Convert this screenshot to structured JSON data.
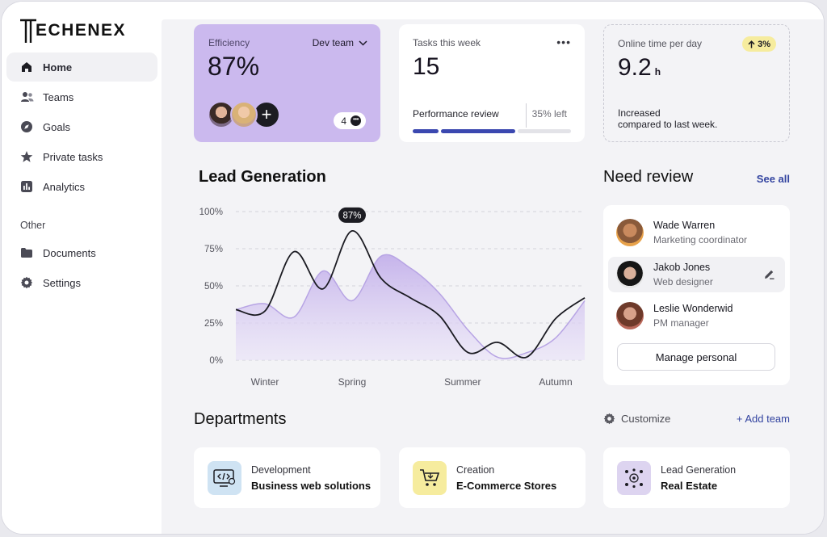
{
  "brand": {
    "name": "ECHENEX"
  },
  "sidebar": {
    "items": [
      {
        "label": "Home",
        "icon": "home-icon"
      },
      {
        "label": "Teams",
        "icon": "teams-icon"
      },
      {
        "label": "Goals",
        "icon": "compass-icon"
      },
      {
        "label": "Private tasks",
        "icon": "star-icon"
      },
      {
        "label": "Analytics",
        "icon": "analytics-icon"
      }
    ],
    "other_heading": "Other",
    "other_items": [
      {
        "label": "Documents",
        "icon": "folder-icon"
      },
      {
        "label": "Settings",
        "icon": "gear-icon"
      }
    ]
  },
  "efficiency": {
    "label": "Efficiency",
    "value": "87%",
    "team": "Dev team",
    "count": "4"
  },
  "tasks": {
    "label": "Tasks this week",
    "value": "15",
    "progress_label": "Performance review",
    "left": "35% left",
    "progress": 0.65
  },
  "online": {
    "label": "Online time per day",
    "badge": "3%",
    "value": "9.2",
    "unit": "h",
    "note_line1": "Increased",
    "note_line2": "compared to last week."
  },
  "lead": {
    "title": "Lead Generation"
  },
  "chart_data": {
    "type": "line",
    "title": "Lead Generation",
    "categories": [
      "Winter",
      "Spring",
      "Summer",
      "Autumn"
    ],
    "ylabels": [
      "100%",
      "75%",
      "50%",
      "25%",
      "0%"
    ],
    "ylim": [
      0,
      100
    ],
    "x": [
      0,
      0.5,
      1,
      1.5,
      2,
      2.5,
      3,
      3.5,
      4,
      4.5,
      5,
      5.5,
      6
    ],
    "series": [
      {
        "name": "Line",
        "style": "line",
        "color": "#1b1b22",
        "values": [
          34,
          33,
          73,
          48,
          87,
          55,
          42,
          30,
          5,
          12,
          2,
          28,
          42
        ]
      },
      {
        "name": "Area",
        "style": "area",
        "color": "#c7b6ea",
        "values": [
          34,
          38,
          29,
          60,
          40,
          70,
          62,
          45,
          20,
          2,
          5,
          15,
          40
        ]
      }
    ],
    "annotation": {
      "label": "87%",
      "series": 0,
      "index": 4
    }
  },
  "review": {
    "title": "Need review",
    "see_all": "See all",
    "people": [
      {
        "name": "Wade Warren",
        "role": "Marketing coordinator"
      },
      {
        "name": "Jakob Jones",
        "role": "Web designer"
      },
      {
        "name": "Leslie Wonderwid",
        "role": "PM manager"
      }
    ],
    "button": "Manage personal"
  },
  "departments": {
    "title": "Departments",
    "customize": "Customize",
    "add_team": "+ Add team",
    "items": [
      {
        "type": "Development",
        "name": "Business web solutions",
        "color": "#cfe3f3"
      },
      {
        "type": "Creation",
        "name": "E-Commerce Stores",
        "color": "#f6ec9e"
      },
      {
        "type": "Lead Generation",
        "name": "Real Estate",
        "color": "#ddd4f0"
      }
    ]
  },
  "colors": {
    "accent": "#3b48b0",
    "purple": "#cbb9ee"
  }
}
